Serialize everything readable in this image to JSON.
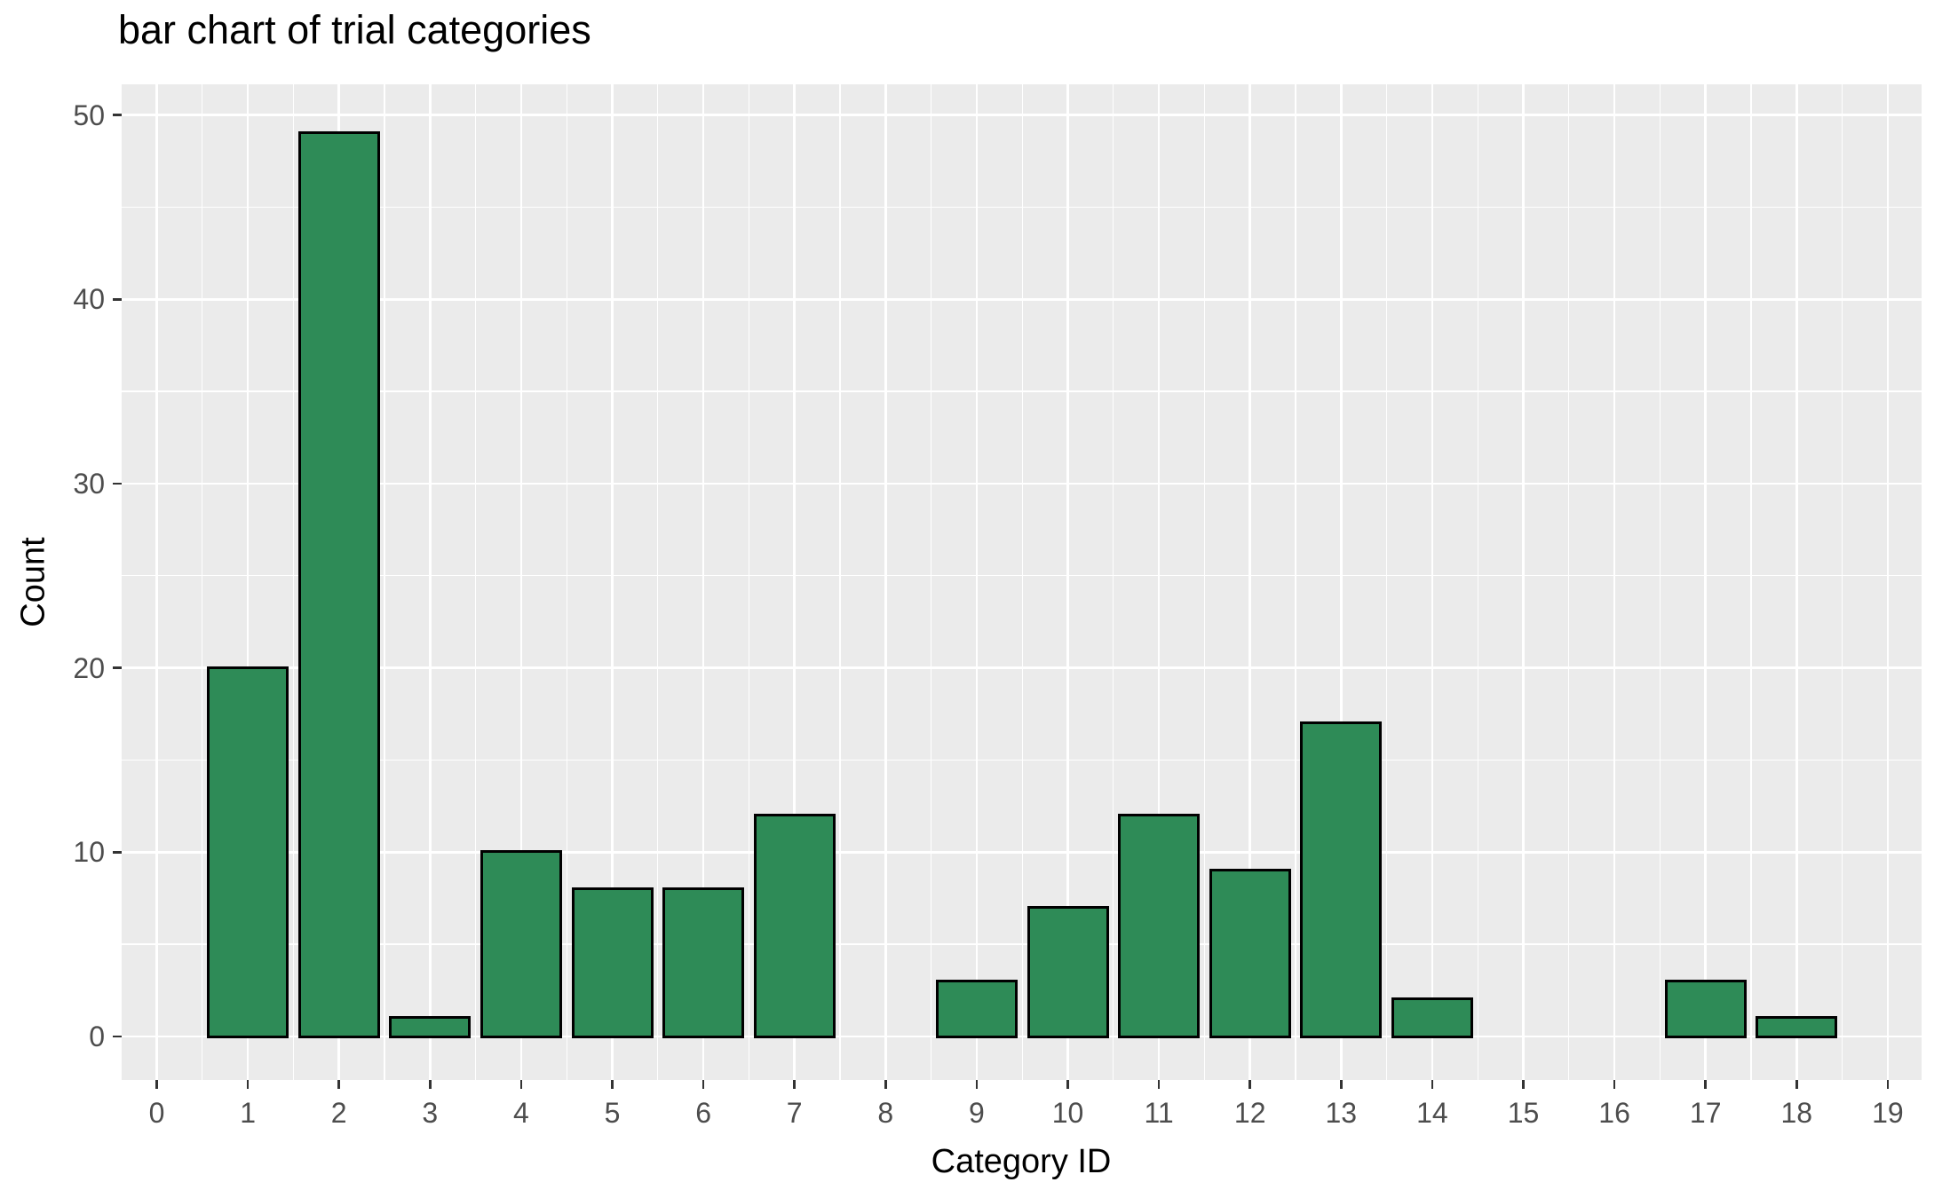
{
  "chart_data": {
    "type": "bar",
    "title": "bar chart of trial categories",
    "xlabel": "Category ID",
    "ylabel": "Count",
    "categories": [
      0,
      1,
      2,
      3,
      4,
      5,
      6,
      7,
      8,
      9,
      10,
      11,
      12,
      13,
      14,
      15,
      16,
      17,
      18,
      19
    ],
    "values": [
      0,
      20,
      49,
      1,
      10,
      8,
      8,
      12,
      0,
      3,
      7,
      12,
      9,
      17,
      2,
      0,
      0,
      3,
      1,
      0
    ],
    "x_ticks": [
      0,
      1,
      2,
      3,
      4,
      5,
      6,
      7,
      8,
      9,
      10,
      11,
      12,
      13,
      14,
      15,
      16,
      17,
      18,
      19
    ],
    "y_ticks": [
      0,
      10,
      20,
      30,
      40,
      50
    ],
    "y_minor_ticks": [
      5,
      15,
      25,
      35,
      45
    ],
    "xlim": [
      -1.4,
      20.4
    ],
    "ylim": [
      -2.45,
      51.45
    ],
    "bar_width": 0.9,
    "grid": true,
    "legend_position": "none",
    "colors": {
      "bar_fill": "#2E8B57",
      "bar_edge": "#000000",
      "panel_background": "#EBEBEB",
      "gridline": "#FFFFFF",
      "tick_mark": "#333333",
      "tick_label": "#4D4D4D",
      "title_text": "#000000",
      "axis_title_text": "#000000"
    }
  }
}
